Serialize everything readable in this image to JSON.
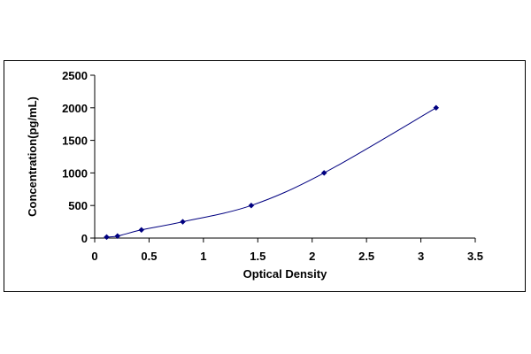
{
  "chart_data": {
    "type": "scatter",
    "title": "",
    "xlabel": "Optical Density",
    "ylabel": "Concentration(pg/mL)",
    "xlim": [
      0,
      3.5
    ],
    "ylim": [
      0,
      2500
    ],
    "x_ticks": [
      0,
      0.5,
      1,
      1.5,
      2,
      2.5,
      3,
      3.5
    ],
    "y_ticks": [
      0,
      500,
      1000,
      1500,
      2000,
      2500
    ],
    "x_tick_labels": [
      "0",
      "0.5",
      "1",
      "1.5",
      "2",
      "2.5",
      "3",
      "3.5"
    ],
    "y_tick_labels": [
      "0",
      "500",
      "1000",
      "1500",
      "2000",
      "2500"
    ],
    "grid": false,
    "legend": "none",
    "series": [
      {
        "marker": "diamond",
        "color": "#000080",
        "trendline": "smooth curve",
        "points": [
          {
            "x": 0.11,
            "y": 15.6
          },
          {
            "x": 0.21,
            "y": 31.2
          },
          {
            "x": 0.43,
            "y": 125
          },
          {
            "x": 0.81,
            "y": 250
          },
          {
            "x": 1.44,
            "y": 500
          },
          {
            "x": 2.11,
            "y": 1000
          },
          {
            "x": 3.14,
            "y": 2000
          }
        ]
      }
    ]
  }
}
